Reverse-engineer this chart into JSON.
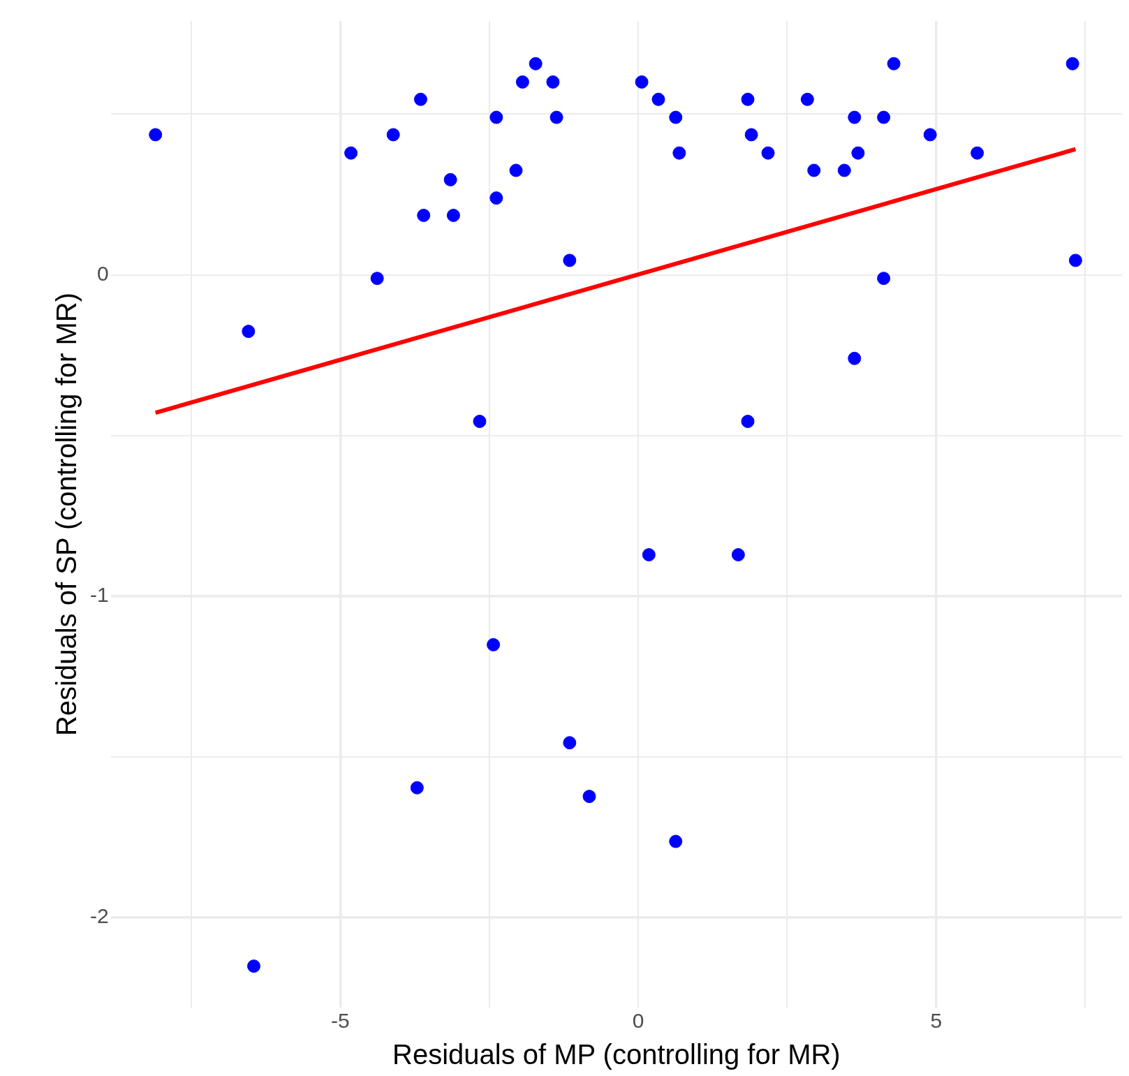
{
  "chart_data": {
    "type": "scatter",
    "xlabel": "Residuals of MP (controlling for MR)",
    "ylabel": "Residuals of SP (controlling for MR)",
    "xlim": [
      -8.85,
      8.12
    ],
    "xticks": [
      {
        "value": -7.5,
        "label": null
      },
      -5,
      {
        "value": -2.5,
        "label": null
      },
      0,
      {
        "value": 2.5,
        "label": null
      },
      5,
      {
        "value": 7.5,
        "label": null
      }
    ],
    "ylim": [
      -2.28,
      0.79
    ],
    "yticks": [
      -2,
      {
        "value": -1.5,
        "label": null
      },
      -1,
      {
        "value": -0.5,
        "label": null
      },
      0,
      {
        "value": 0.5,
        "label": null
      }
    ],
    "grid": true,
    "series": [
      {
        "type": "scatter",
        "marker": "circle",
        "color": "#0000ff",
        "x": [
          -8.1,
          -6.54,
          -6.45,
          -4.82,
          -4.38,
          -4.11,
          -3.71,
          -3.65,
          -3.6,
          -3.15,
          -3.1,
          -2.66,
          -2.43,
          -2.38,
          -2.38,
          -2.05,
          -1.94,
          -1.72,
          -1.43,
          -1.37,
          -1.15,
          -1.15,
          -0.82,
          0.06,
          0.18,
          0.34,
          0.63,
          0.63,
          0.69,
          1.68,
          1.84,
          1.84,
          1.9,
          2.18,
          2.84,
          2.95,
          3.46,
          3.63,
          3.63,
          3.69,
          4.12,
          4.12,
          4.29,
          4.9,
          5.69,
          7.29,
          7.34
        ],
        "values": [
          0.436,
          -0.176,
          -2.151,
          0.379,
          -0.011,
          0.436,
          -1.596,
          0.546,
          0.185,
          0.296,
          0.185,
          -0.456,
          -1.151,
          0.49,
          0.239,
          0.325,
          0.6,
          0.657,
          0.6,
          0.49,
          0.045,
          -1.456,
          -1.623,
          0.6,
          -0.871,
          0.546,
          0.49,
          -1.763,
          0.379,
          -0.871,
          0.546,
          -0.456,
          0.436,
          0.379,
          0.546,
          0.325,
          0.325,
          0.49,
          -0.26,
          0.379,
          0.49,
          -0.011,
          0.657,
          0.436,
          0.379,
          0.657,
          0.045
        ]
      },
      {
        "type": "line",
        "marker": "none",
        "color": "#ff0000",
        "x": [
          -8.1,
          7.34
        ],
        "values": [
          -0.429,
          0.391
        ]
      }
    ]
  }
}
